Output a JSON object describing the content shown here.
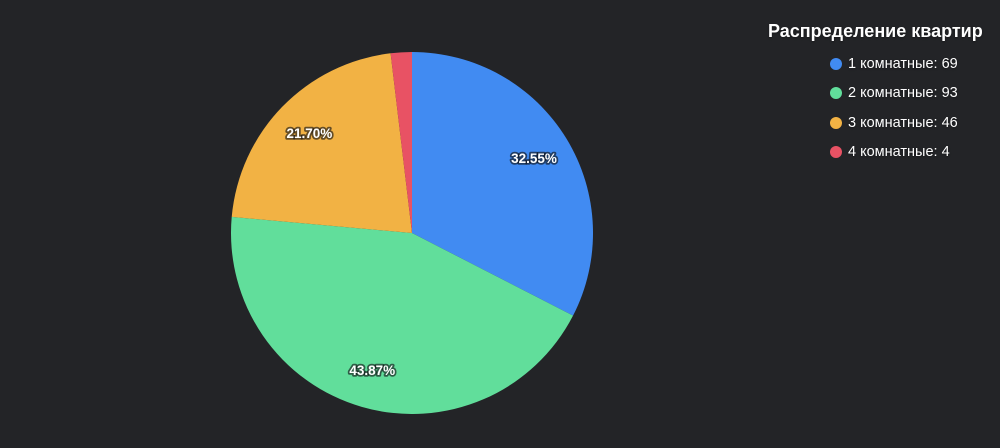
{
  "background_color": "#232427",
  "chart_data": {
    "type": "pie",
    "title": "Распределение квартир",
    "legend_position": "right",
    "categories": [
      "1 комнатные",
      "2 комнатные",
      "3 комнатные",
      "4 комнатные"
    ],
    "values": [
      69,
      93,
      46,
      4
    ],
    "slices": [
      {
        "label": "1 комнатные",
        "value": 69,
        "percent_label": "32.55%",
        "color": "#418BF2",
        "legend_label": "1 комнатные: 69"
      },
      {
        "label": "2 комнатные",
        "value": 93,
        "percent_label": "43.87%",
        "color": "#61DE9B",
        "legend_label": "2 комнатные: 93"
      },
      {
        "label": "3 комнатные",
        "value": 46,
        "percent_label": "21.70%",
        "color": "#F2B244",
        "legend_label": "3 комнатные: 46"
      },
      {
        "label": "4 комнатные",
        "value": 4,
        "percent_label": "",
        "color": "#E85264",
        "legend_label": "4 комнатные: 4"
      }
    ]
  }
}
